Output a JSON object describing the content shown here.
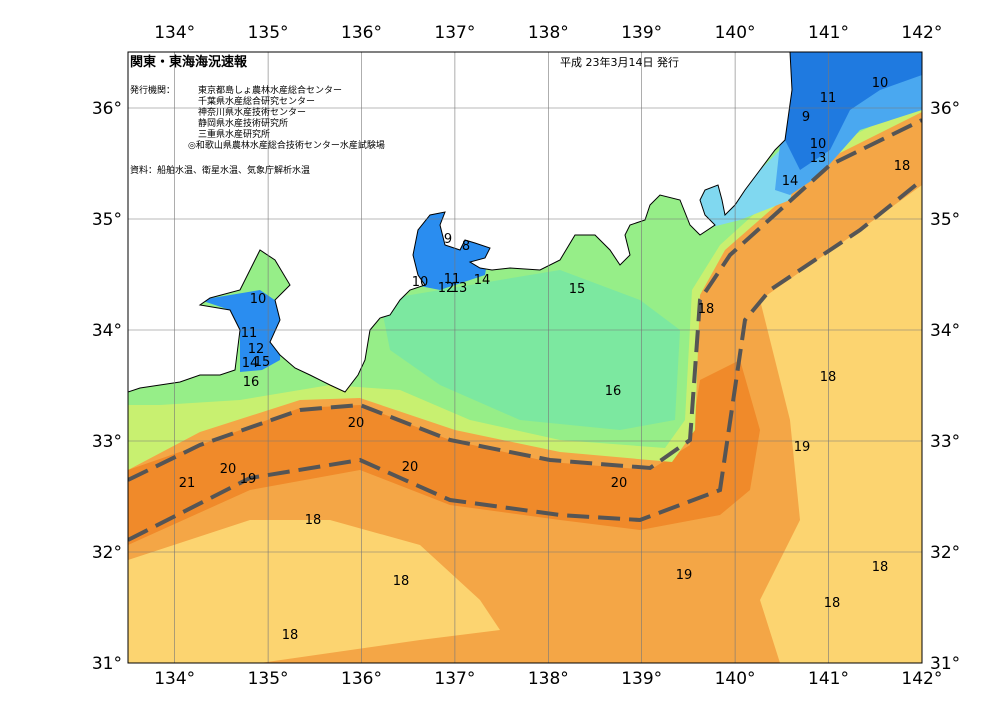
{
  "header": {
    "title": "関東・東海海況速報",
    "date": "平成 23年3月14日 発行",
    "issuer_label": "発行機関：",
    "issuers": [
      "東京都島しょ農林水産総合センター",
      "千葉県水産総合研究センター",
      "神奈川県水産技術センター",
      "静岡県水産技術研究所",
      "三重県水産研究所",
      "◎和歌山県農林水産総合技術センター水産試験場"
    ],
    "source": "資料：船舶水温、衛星水温、気象庁解析水温"
  },
  "map": {
    "lon_labels": [
      "134°",
      "135°",
      "136°",
      "137°",
      "138°",
      "139°",
      "140°",
      "141°",
      "142°"
    ],
    "lat_labels": [
      "36°",
      "35°",
      "34°",
      "33°",
      "32°",
      "31°"
    ],
    "contour_labels": [
      10,
      11,
      9,
      10,
      13,
      14,
      18,
      9,
      8,
      11,
      10,
      12,
      13,
      14,
      15,
      10,
      11,
      12,
      14,
      15,
      16,
      18,
      18,
      16,
      20,
      20,
      19,
      20,
      21,
      19,
      20,
      18,
      18,
      19,
      18,
      18,
      18
    ]
  }
}
